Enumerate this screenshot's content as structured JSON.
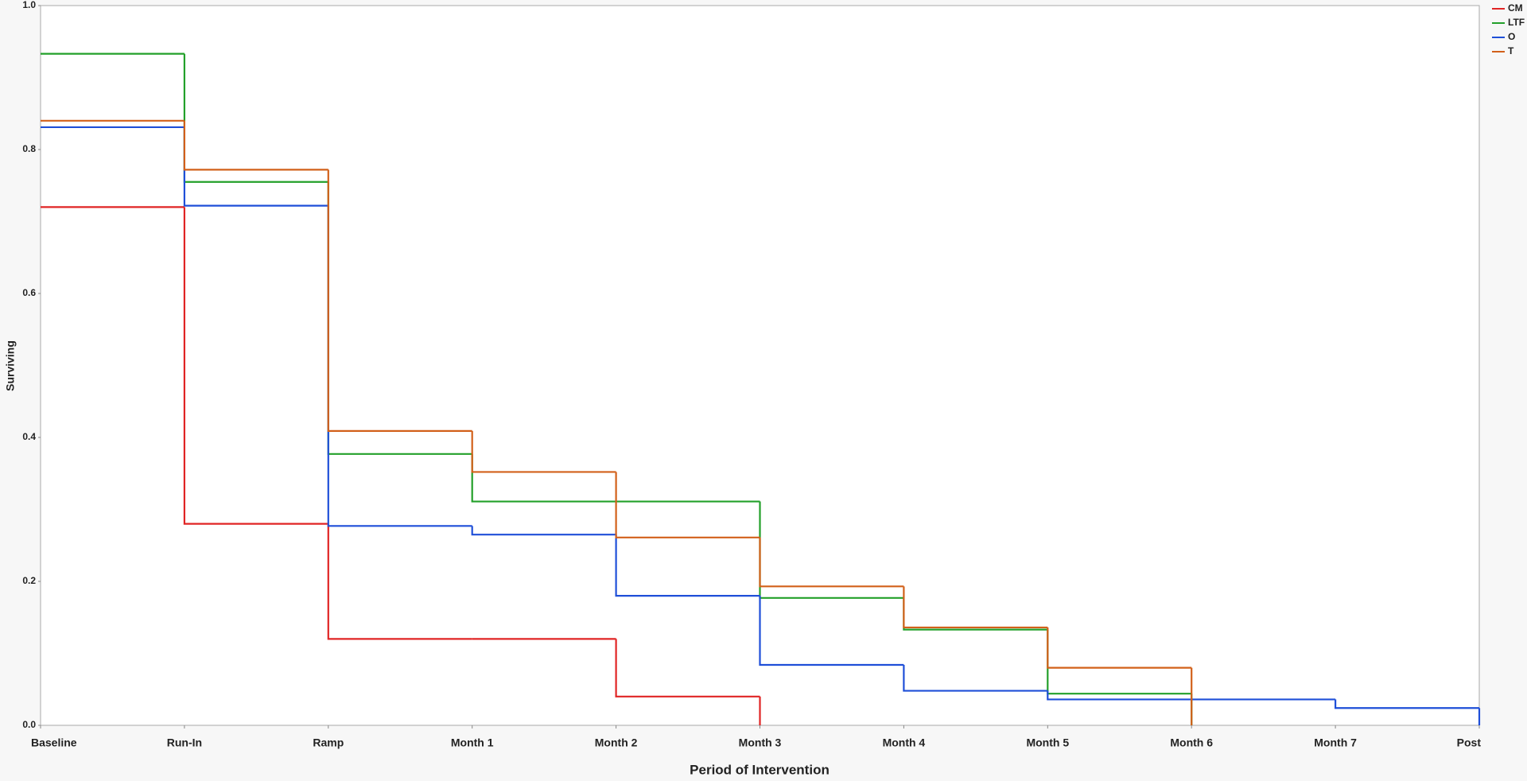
{
  "chart_data": {
    "type": "step",
    "x_label": "Period of Intervention",
    "y_label": "Surviving",
    "categories": [
      "Baseline",
      "Run-In",
      "Ramp",
      "Month 1",
      "Month 2",
      "Month 3",
      "Month 4",
      "Month 5",
      "Month 6",
      "Month 7",
      "Post"
    ],
    "ylim": [
      0,
      1
    ],
    "yticks": [
      {
        "value": 0,
        "label": "0.0"
      },
      0.2,
      0.4,
      0.6,
      0.8,
      {
        "value": 1,
        "label": "1.0"
      }
    ],
    "legend": "top-right",
    "series": [
      {
        "name": "CM",
        "color": "#e02424",
        "values": [
          0.72,
          0.28,
          0.12,
          0.12,
          0.04,
          0,
          null,
          null,
          null,
          null,
          null
        ]
      },
      {
        "name": "LTF",
        "color": "#23a02a",
        "values": [
          0.933,
          0.755,
          0.377,
          0.311,
          0.311,
          0.177,
          0.133,
          0.044,
          0,
          null,
          null
        ]
      },
      {
        "name": "O",
        "color": "#1f4fd8",
        "values": [
          0.831,
          0.722,
          0.277,
          0.265,
          0.18,
          0.084,
          0.048,
          0.036,
          0.036,
          0.024,
          0
        ]
      },
      {
        "name": "T",
        "color": "#d2601a",
        "values": [
          0.84,
          0.772,
          0.409,
          0.352,
          0.261,
          0.193,
          0.136,
          0.08,
          0,
          null,
          null
        ]
      }
    ]
  }
}
